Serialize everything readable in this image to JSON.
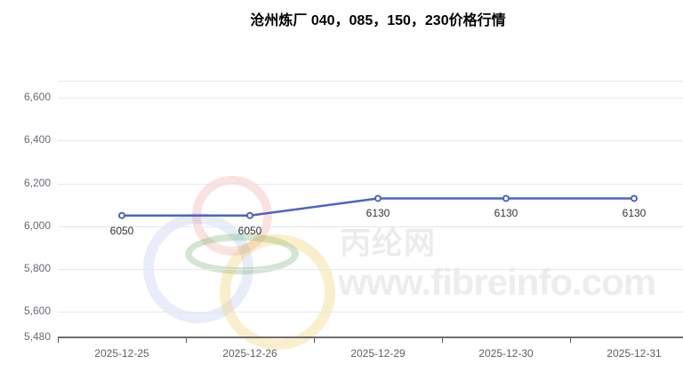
{
  "title": "沧州炼厂 040，085，150，230价格行情",
  "watermark": {
    "site_name_cn": "丙纶网",
    "site_url": "www.fibreinfo.com"
  },
  "chart_data": {
    "type": "line",
    "title": "沧州炼厂 040，085，150，230价格行情",
    "categories": [
      "2025-12-25",
      "2025-12-26",
      "2025-12-29",
      "2025-12-30",
      "2025-12-31"
    ],
    "series": [
      {
        "name": "price",
        "values": [
          6050,
          6050,
          6130,
          6130,
          6130
        ],
        "data_labels": [
          "6050",
          "6050",
          "6130",
          "6130",
          "6130"
        ],
        "color": "#4c63c4"
      }
    ],
    "xlabel": "",
    "ylabel": "",
    "ylim": [
      5480,
      6680
    ],
    "yticks": [
      {
        "value": 5480,
        "label": "5,480"
      },
      {
        "value": 5600,
        "label": "5,600"
      },
      {
        "value": 5800,
        "label": "5,800"
      },
      {
        "value": 6000,
        "label": "6,000"
      },
      {
        "value": 6200,
        "label": "6,200"
      },
      {
        "value": 6400,
        "label": "6,400"
      },
      {
        "value": 6600,
        "label": "6,600"
      }
    ],
    "top_gridline_value": 6680,
    "grid": true,
    "legend": false
  },
  "colors": {
    "line": "#4c63c4",
    "marker_fill": "#ffffff",
    "gridline": "#e2e8f0",
    "axis_line": "#6e6e6e",
    "tick": "#555555",
    "y_label": "#666a73",
    "x_label": "#5c5f66",
    "data_label": "#333333",
    "watermark_text": "#ececec"
  }
}
